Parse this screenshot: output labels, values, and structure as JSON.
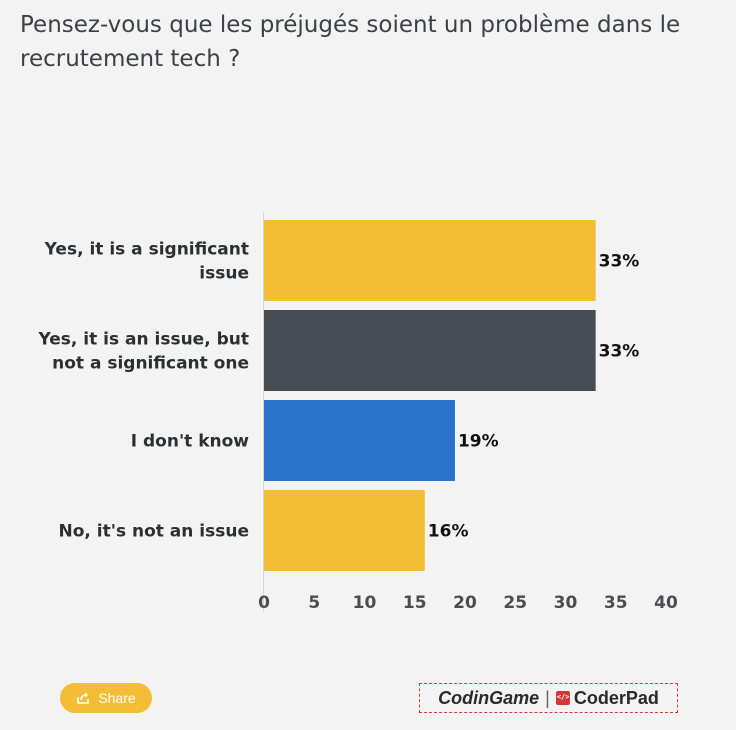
{
  "title": "Pensez-vous que les préjugés soient un problème dans le recrutement tech ?",
  "share_label": "Share",
  "logo": {
    "left": "CodinGame",
    "right": "CoderPad"
  },
  "colors": {
    "background": "#f3f3f3",
    "yellow": "#f3bd36",
    "dark": "#454c54",
    "blue": "#2b72cc"
  },
  "chart_data": {
    "type": "bar",
    "orientation": "horizontal",
    "categories": [
      [
        "Yes, it is a significant",
        "issue"
      ],
      [
        "Yes, it is an issue, but",
        "not a significant one"
      ],
      [
        "I don't know"
      ],
      [
        "No, it's not an issue"
      ]
    ],
    "values": [
      33,
      33,
      19,
      16
    ],
    "value_labels": [
      "33%",
      "33%",
      "19%",
      "16%"
    ],
    "bar_colors": [
      "#f3bd36",
      "#454c54",
      "#2b72cc",
      "#f3bd36"
    ],
    "xlim": [
      0,
      40
    ],
    "xticks": [
      0,
      5,
      10,
      15,
      20,
      25,
      30,
      35,
      40
    ],
    "grid": false
  }
}
